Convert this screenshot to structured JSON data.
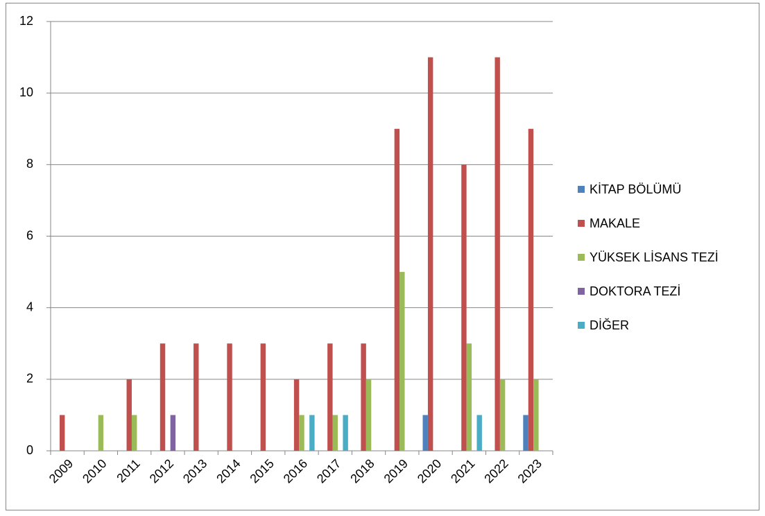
{
  "chart_data": {
    "type": "bar",
    "categories": [
      "2009",
      "2010",
      "2011",
      "2012",
      "2013",
      "2014",
      "2015",
      "2016",
      "2017",
      "2018",
      "2019",
      "2020",
      "2021",
      "2022",
      "2023"
    ],
    "series": [
      {
        "name": "KİTAP BÖLÜMÜ",
        "color": "#4f81bd",
        "values": [
          0,
          0,
          0,
          0,
          0,
          0,
          0,
          0,
          0,
          0,
          0,
          1,
          0,
          0,
          1
        ]
      },
      {
        "name": "MAKALE",
        "color": "#c0504d",
        "values": [
          1,
          0,
          2,
          3,
          3,
          3,
          3,
          2,
          3,
          3,
          9,
          11,
          8,
          11,
          9
        ]
      },
      {
        "name": "YÜKSEK LİSANS TEZİ",
        "color": "#9bbb59",
        "values": [
          0,
          1,
          1,
          0,
          0,
          0,
          0,
          1,
          1,
          2,
          5,
          0,
          3,
          2,
          2
        ]
      },
      {
        "name": "DOKTORA TEZİ",
        "color": "#8064a2",
        "values": [
          0,
          0,
          0,
          1,
          0,
          0,
          0,
          0,
          0,
          0,
          0,
          0,
          0,
          0,
          0
        ]
      },
      {
        "name": "DİĞER",
        "color": "#4bacc6",
        "values": [
          0,
          0,
          0,
          0,
          0,
          0,
          0,
          1,
          1,
          0,
          0,
          0,
          1,
          0,
          0
        ]
      }
    ],
    "ylim": [
      0,
      12
    ],
    "yticks": [
      0,
      2,
      4,
      6,
      8,
      10,
      12
    ],
    "grid": true,
    "legend": "right"
  }
}
